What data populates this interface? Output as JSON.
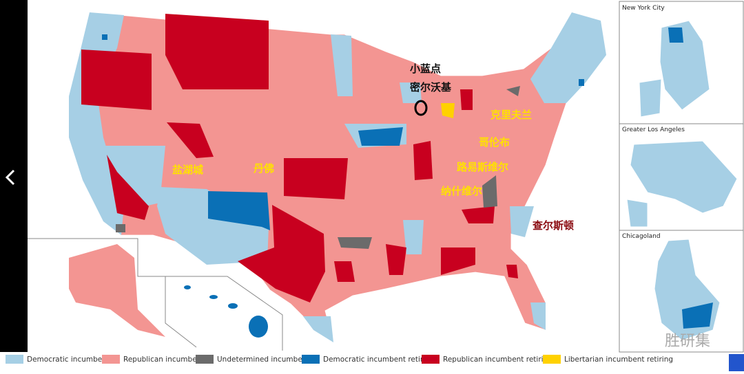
{
  "labels": [
    "小蓝点",
    "密尔沃基",
    "克里夫兰",
    "哥伦布",
    "盐湖城",
    "丹佛",
    "路易斯维尔",
    "纳什维尔",
    "查尔斯顿"
  ],
  "insets": [
    {
      "title": "New York City"
    },
    {
      "title": "Greater Los Angeles"
    },
    {
      "title": "Chicagoland"
    }
  ],
  "legend": [
    {
      "name": "Democratic incumbent",
      "color": "#a6cfe5"
    },
    {
      "name": "Republican incumbent",
      "color": "#f39592"
    },
    {
      "name": "Undetermined incumbent",
      "color": "#6b6b6b"
    },
    {
      "name": "Democratic incumbent retiring",
      "color": "#0a70b6"
    },
    {
      "name": "Republican incumbent retiring",
      "color": "#c8001f"
    },
    {
      "name": "Libertarian incumbent retiring",
      "color": "#ffd100"
    }
  ],
  "watermark": "胜研集"
}
